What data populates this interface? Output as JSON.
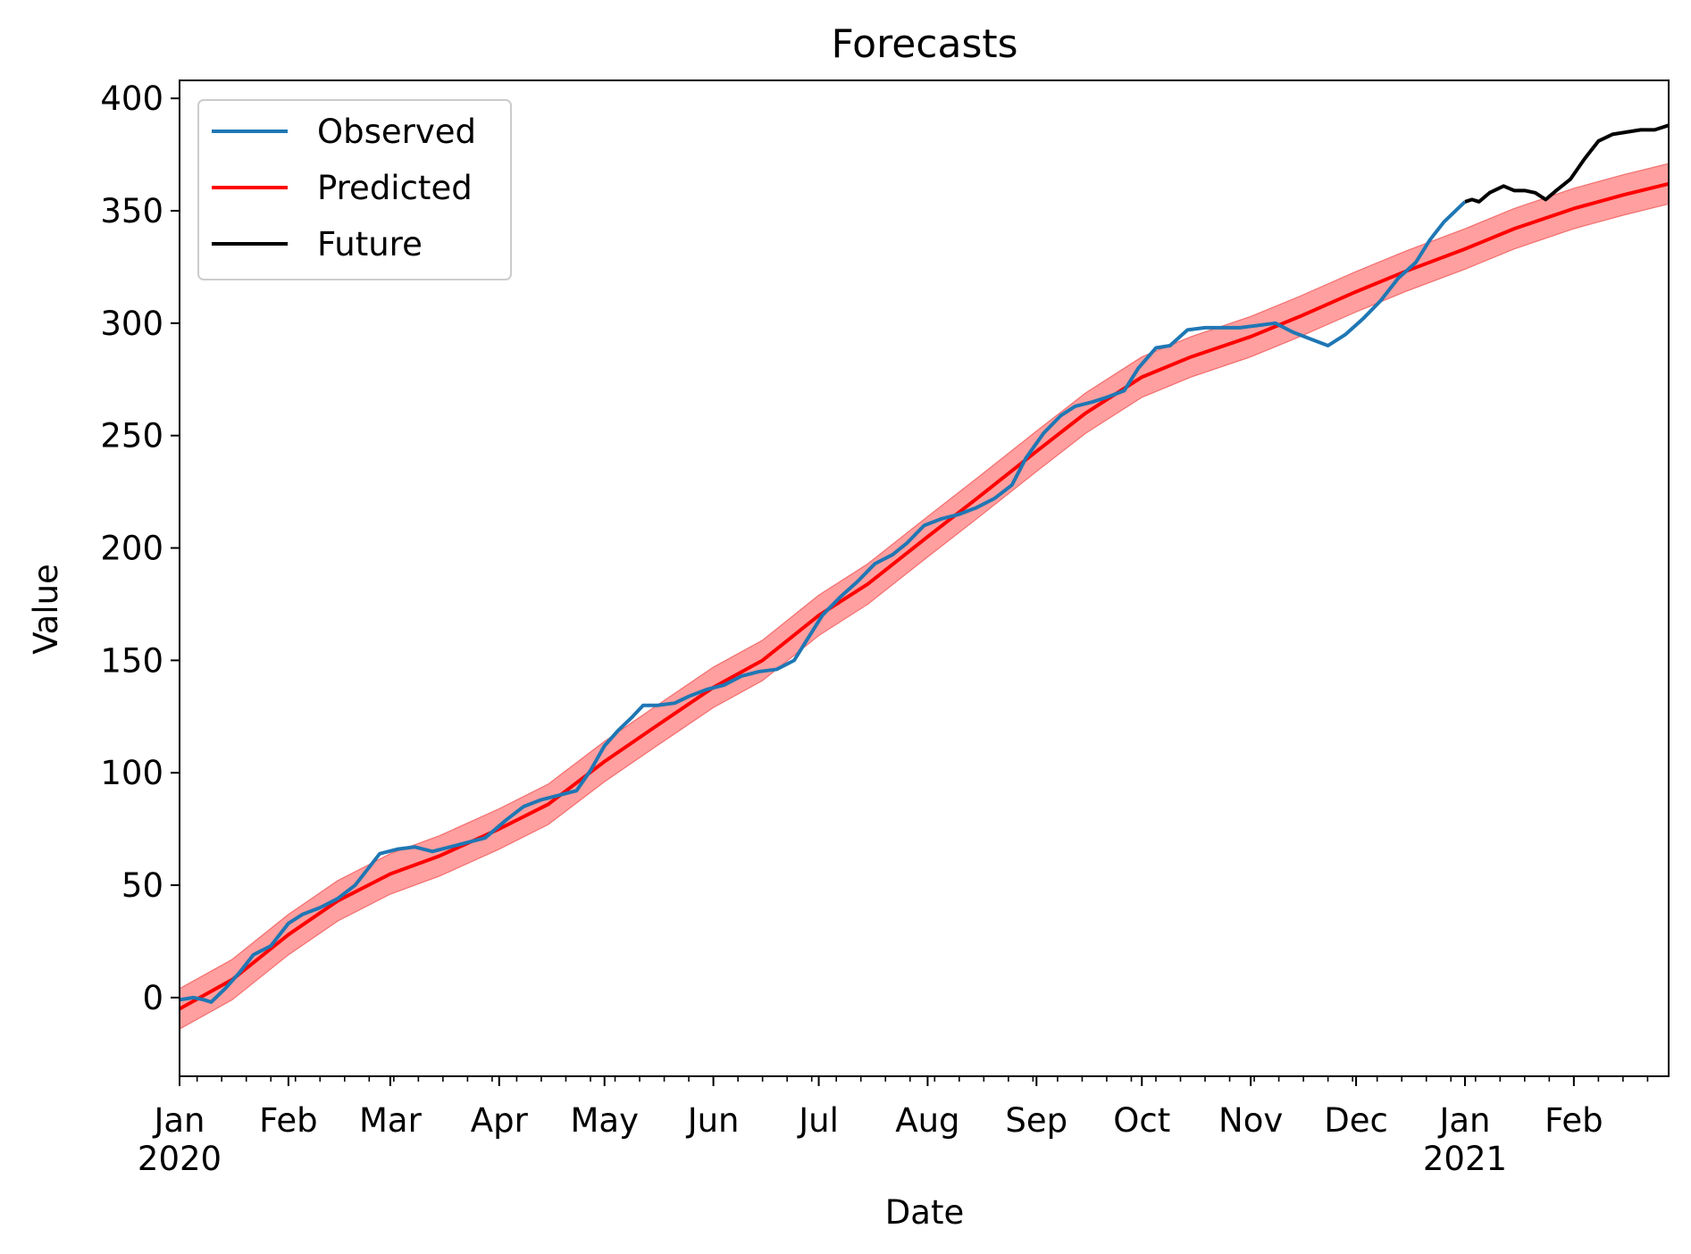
{
  "chart_data": {
    "type": "line",
    "title": "Forecasts",
    "xlabel": "Date",
    "ylabel": "Value",
    "xlim": [
      "2020-01-01",
      "2021-02-28"
    ],
    "ylim": [
      -35,
      408
    ],
    "grid": false,
    "legend_position": "top-left",
    "y_ticks": [
      0,
      50,
      100,
      150,
      200,
      250,
      300,
      350,
      400
    ],
    "x_major_ticks": [
      {
        "date": "2020-01-01",
        "month": "Jan",
        "year": "2020"
      },
      {
        "date": "2020-02-01",
        "month": "Feb",
        "year": ""
      },
      {
        "date": "2020-03-01",
        "month": "Mar",
        "year": ""
      },
      {
        "date": "2020-04-01",
        "month": "Apr",
        "year": ""
      },
      {
        "date": "2020-05-01",
        "month": "May",
        "year": ""
      },
      {
        "date": "2020-06-01",
        "month": "Jun",
        "year": ""
      },
      {
        "date": "2020-07-01",
        "month": "Jul",
        "year": ""
      },
      {
        "date": "2020-08-01",
        "month": "Aug",
        "year": ""
      },
      {
        "date": "2020-09-01",
        "month": "Sep",
        "year": ""
      },
      {
        "date": "2020-10-01",
        "month": "Oct",
        "year": ""
      },
      {
        "date": "2020-11-01",
        "month": "Nov",
        "year": ""
      },
      {
        "date": "2020-12-01",
        "month": "Dec",
        "year": ""
      },
      {
        "date": "2021-01-01",
        "month": "Jan",
        "year": "2021"
      },
      {
        "date": "2021-02-01",
        "month": "Feb",
        "year": ""
      }
    ],
    "series": [
      {
        "name": "Observed",
        "color": "#1f77b4",
        "points": [
          [
            "2020-01-01",
            -1
          ],
          [
            "2020-01-05",
            0
          ],
          [
            "2020-01-08",
            -1
          ],
          [
            "2020-01-10",
            -2
          ],
          [
            "2020-01-14",
            4
          ],
          [
            "2020-01-18",
            11
          ],
          [
            "2020-01-22",
            19
          ],
          [
            "2020-01-27",
            23
          ],
          [
            "2020-02-01",
            33
          ],
          [
            "2020-02-05",
            37
          ],
          [
            "2020-02-10",
            40
          ],
          [
            "2020-02-15",
            44
          ],
          [
            "2020-02-20",
            50
          ],
          [
            "2020-02-24",
            58
          ],
          [
            "2020-02-27",
            64
          ],
          [
            "2020-03-03",
            66
          ],
          [
            "2020-03-08",
            67
          ],
          [
            "2020-03-13",
            65
          ],
          [
            "2020-03-18",
            67
          ],
          [
            "2020-03-23",
            69
          ],
          [
            "2020-03-28",
            71
          ],
          [
            "2020-04-03",
            79
          ],
          [
            "2020-04-08",
            85
          ],
          [
            "2020-04-13",
            88
          ],
          [
            "2020-04-18",
            90
          ],
          [
            "2020-04-23",
            92
          ],
          [
            "2020-04-27",
            101
          ],
          [
            "2020-05-01",
            112
          ],
          [
            "2020-05-05",
            119
          ],
          [
            "2020-05-09",
            125
          ],
          [
            "2020-05-12",
            130
          ],
          [
            "2020-05-16",
            130
          ],
          [
            "2020-05-21",
            131
          ],
          [
            "2020-05-25",
            134
          ],
          [
            "2020-05-30",
            137
          ],
          [
            "2020-06-04",
            139
          ],
          [
            "2020-06-09",
            143
          ],
          [
            "2020-06-14",
            145
          ],
          [
            "2020-06-19",
            146
          ],
          [
            "2020-06-24",
            150
          ],
          [
            "2020-06-28",
            160
          ],
          [
            "2020-07-02",
            170
          ],
          [
            "2020-07-07",
            178
          ],
          [
            "2020-07-12",
            185
          ],
          [
            "2020-07-17",
            193
          ],
          [
            "2020-07-22",
            197
          ],
          [
            "2020-07-26",
            202
          ],
          [
            "2020-07-31",
            210
          ],
          [
            "2020-08-05",
            213
          ],
          [
            "2020-08-10",
            215
          ],
          [
            "2020-08-15",
            218
          ],
          [
            "2020-08-20",
            222
          ],
          [
            "2020-08-25",
            228
          ],
          [
            "2020-08-29",
            240
          ],
          [
            "2020-09-03",
            251
          ],
          [
            "2020-09-08",
            259
          ],
          [
            "2020-09-12",
            263
          ],
          [
            "2020-09-17",
            265
          ],
          [
            "2020-09-21",
            267
          ],
          [
            "2020-09-26",
            270
          ],
          [
            "2020-09-30",
            280
          ],
          [
            "2020-10-05",
            289
          ],
          [
            "2020-10-09",
            290
          ],
          [
            "2020-10-14",
            297
          ],
          [
            "2020-10-19",
            298
          ],
          [
            "2020-10-24",
            298
          ],
          [
            "2020-10-29",
            298
          ],
          [
            "2020-11-03",
            299
          ],
          [
            "2020-11-08",
            300
          ],
          [
            "2020-11-13",
            296
          ],
          [
            "2020-11-18",
            293
          ],
          [
            "2020-11-23",
            290
          ],
          [
            "2020-11-28",
            295
          ],
          [
            "2020-12-03",
            302
          ],
          [
            "2020-12-08",
            310
          ],
          [
            "2020-12-13",
            320
          ],
          [
            "2020-12-18",
            327
          ],
          [
            "2020-12-22",
            337
          ],
          [
            "2020-12-26",
            345
          ],
          [
            "2020-12-30",
            351
          ],
          [
            "2021-01-01",
            354
          ]
        ]
      },
      {
        "name": "Predicted",
        "color": "#ff0000",
        "band_color": "#ff6b6b",
        "points": [
          [
            "2020-01-01",
            -5,
            -14,
            4
          ],
          [
            "2020-01-16",
            8,
            -1,
            17
          ],
          [
            "2020-02-01",
            28,
            19,
            37
          ],
          [
            "2020-02-15",
            43,
            34,
            52
          ],
          [
            "2020-03-01",
            55,
            46,
            64
          ],
          [
            "2020-03-15",
            63,
            54,
            72
          ],
          [
            "2020-04-01",
            75,
            66,
            84
          ],
          [
            "2020-04-15",
            86,
            77,
            95
          ],
          [
            "2020-05-01",
            105,
            96,
            114
          ],
          [
            "2020-05-15",
            120,
            111,
            129
          ],
          [
            "2020-06-01",
            138,
            129,
            147
          ],
          [
            "2020-06-15",
            150,
            141,
            159
          ],
          [
            "2020-07-01",
            170,
            161,
            179
          ],
          [
            "2020-07-15",
            184,
            175,
            193
          ],
          [
            "2020-08-01",
            205,
            196,
            214
          ],
          [
            "2020-08-15",
            222,
            213,
            231
          ],
          [
            "2020-09-01",
            243,
            234,
            252
          ],
          [
            "2020-09-15",
            260,
            251,
            269
          ],
          [
            "2020-10-01",
            276,
            267,
            285
          ],
          [
            "2020-10-15",
            285,
            276,
            294
          ],
          [
            "2020-11-01",
            294,
            285,
            303
          ],
          [
            "2020-11-15",
            303,
            294,
            312
          ],
          [
            "2020-12-01",
            314,
            305,
            323
          ],
          [
            "2020-12-15",
            323,
            314,
            332
          ],
          [
            "2021-01-01",
            333,
            324,
            342
          ],
          [
            "2021-01-15",
            342,
            333,
            351
          ],
          [
            "2021-02-01",
            351,
            342,
            360
          ],
          [
            "2021-02-15",
            357,
            348,
            366
          ],
          [
            "2021-02-28",
            362,
            353,
            371
          ]
        ]
      },
      {
        "name": "Future",
        "color": "#000000",
        "points": [
          [
            "2021-01-01",
            354
          ],
          [
            "2021-01-03",
            355
          ],
          [
            "2021-01-05",
            354
          ],
          [
            "2021-01-08",
            358
          ],
          [
            "2021-01-12",
            361
          ],
          [
            "2021-01-15",
            359
          ],
          [
            "2021-01-18",
            359
          ],
          [
            "2021-01-21",
            358
          ],
          [
            "2021-01-24",
            355
          ],
          [
            "2021-01-27",
            359
          ],
          [
            "2021-01-31",
            364
          ],
          [
            "2021-02-04",
            373
          ],
          [
            "2021-02-08",
            381
          ],
          [
            "2021-02-12",
            384
          ],
          [
            "2021-02-16",
            385
          ],
          [
            "2021-02-20",
            386
          ],
          [
            "2021-02-24",
            386
          ],
          [
            "2021-02-28",
            388
          ]
        ]
      }
    ]
  }
}
